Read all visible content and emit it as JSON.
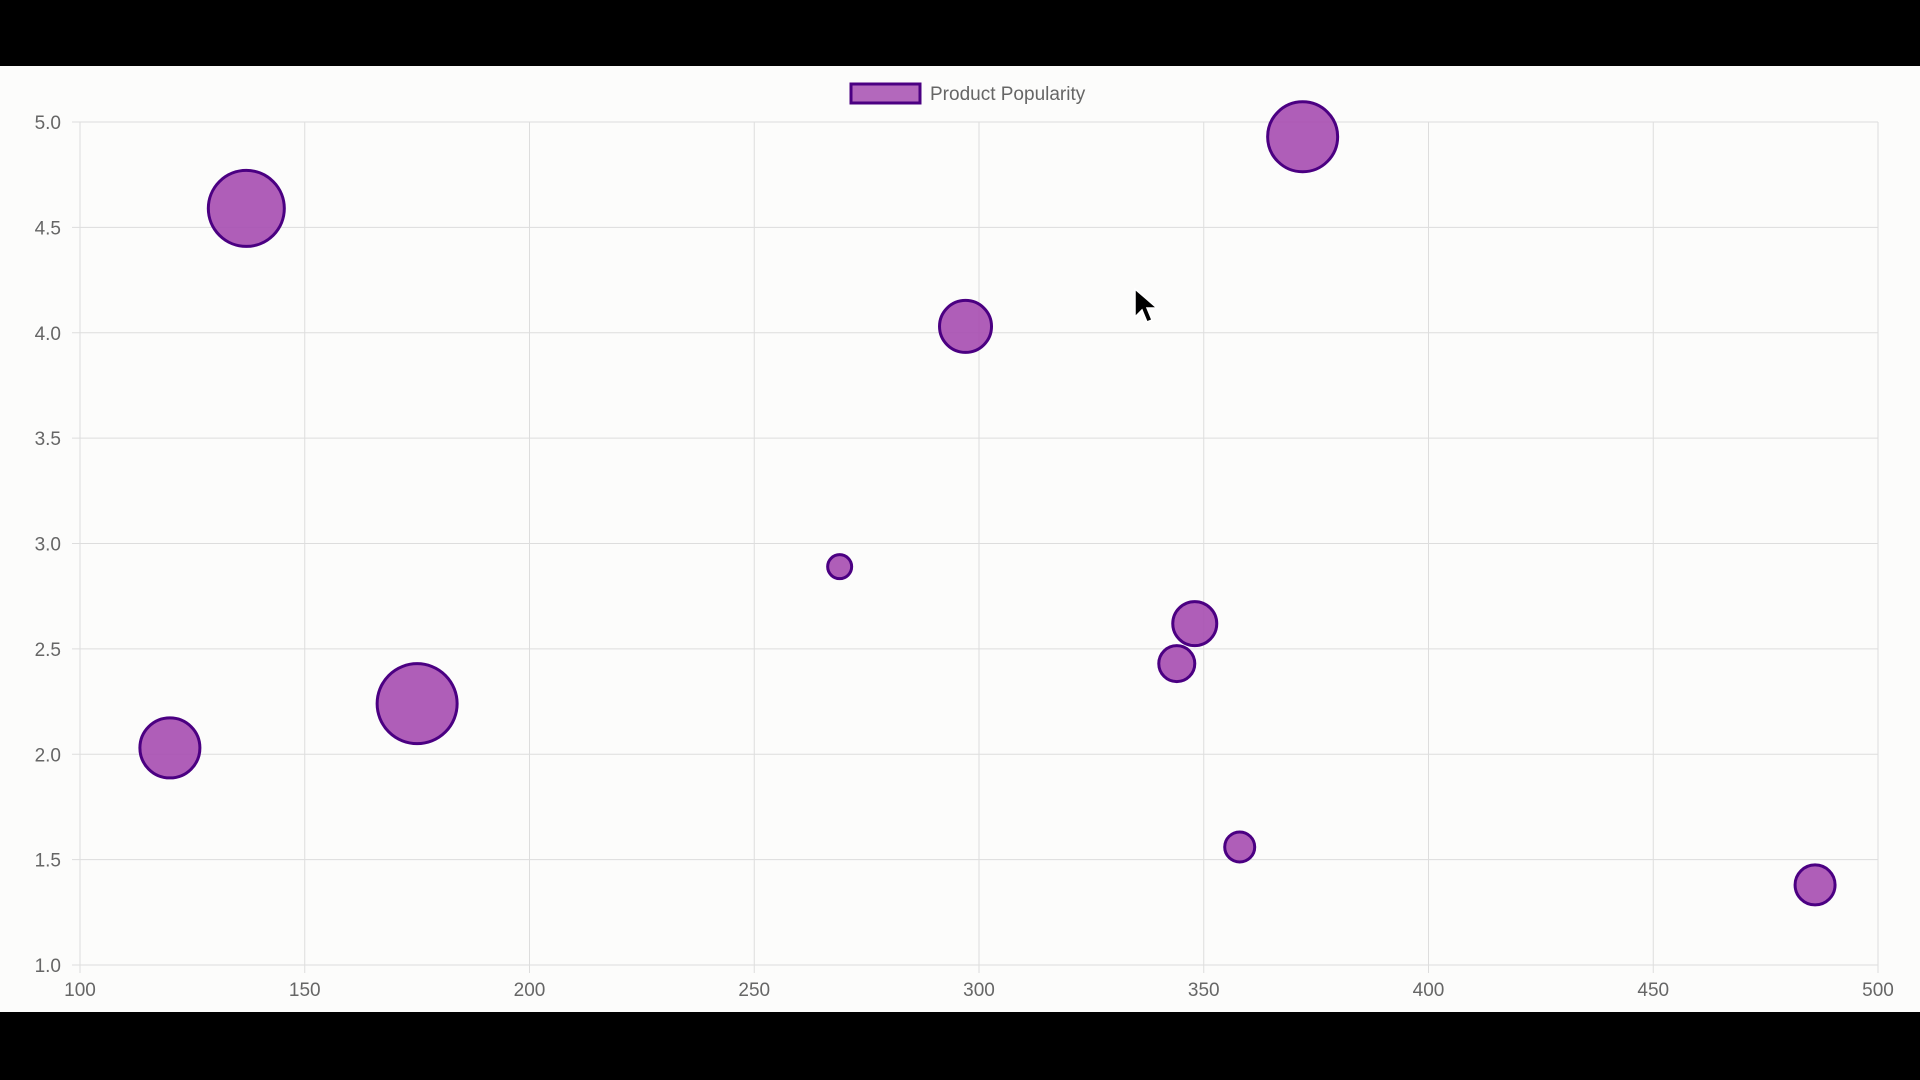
{
  "chart_data": {
    "type": "bubble",
    "legend": {
      "label": "Product Popularity",
      "position": "top-center"
    },
    "x": {
      "min": 100,
      "max": 500,
      "step": 50,
      "ticks": [
        "100",
        "150",
        "200",
        "250",
        "300",
        "350",
        "400",
        "450",
        "500"
      ]
    },
    "y": {
      "min": 1.0,
      "max": 5.0,
      "step": 0.5,
      "ticks": [
        "1.0",
        "1.5",
        "2.0",
        "2.5",
        "3.0",
        "3.5",
        "4.0",
        "4.5",
        "5.0"
      ]
    },
    "grid": true,
    "series": [
      {
        "name": "Product Popularity",
        "fill": "#a64db0",
        "stroke": "#4b0082",
        "points": [
          {
            "x": 120,
            "y": 2.03,
            "r": 30
          },
          {
            "x": 137,
            "y": 4.59,
            "r": 38
          },
          {
            "x": 175,
            "y": 2.24,
            "r": 40
          },
          {
            "x": 269,
            "y": 2.89,
            "r": 12
          },
          {
            "x": 297,
            "y": 4.03,
            "r": 26
          },
          {
            "x": 344,
            "y": 2.43,
            "r": 18
          },
          {
            "x": 348,
            "y": 2.62,
            "r": 22
          },
          {
            "x": 358,
            "y": 1.56,
            "r": 15
          },
          {
            "x": 372,
            "y": 4.93,
            "r": 35
          },
          {
            "x": 486,
            "y": 1.38,
            "r": 20
          }
        ]
      }
    ]
  }
}
